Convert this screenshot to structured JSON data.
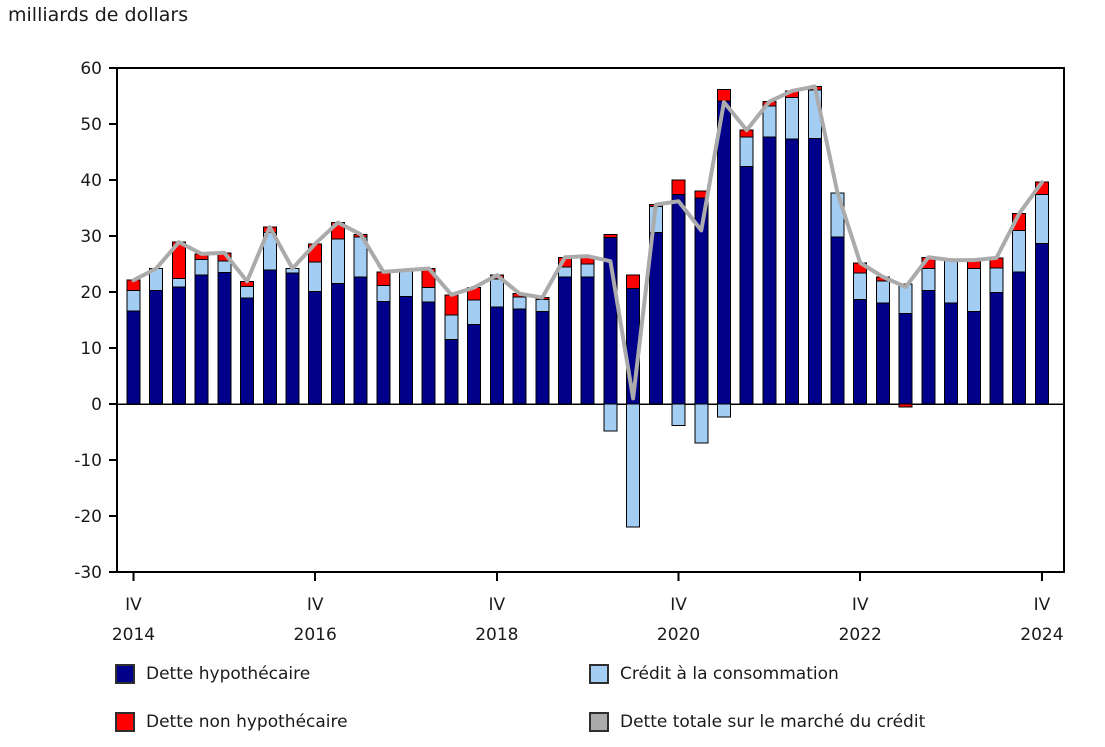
{
  "title": "milliards de dollars",
  "legend": {
    "items": [
      {
        "label": "Dette hypothécaire"
      },
      {
        "label": "Crédit à la consommation"
      },
      {
        "label": "Dette non hypothécaire"
      },
      {
        "label": "Dette totale sur le marché du crédit"
      }
    ]
  },
  "colors": {
    "mortgage": "#00008B",
    "consumer_credit": "#A3CDF3",
    "non_mortgage": "#FF0000",
    "total_line": "#ABABAB",
    "axis": "#000000"
  },
  "chart_data": {
    "type": "bar",
    "subtype": "stacked-bars-with-total-line",
    "title": "milliards de dollars",
    "ylabel": "milliards de dollars",
    "ylim": [
      -30,
      60
    ],
    "ytick_interval": 10,
    "yticks": [
      60,
      50,
      40,
      30,
      20,
      10,
      0,
      -10,
      -20,
      -30
    ],
    "grid": false,
    "legend_position": "bottom",
    "categories": [
      "IV 2014",
      "I 2015",
      "II 2015",
      "III 2015",
      "IV 2015",
      "I 2016",
      "II 2016",
      "III 2016",
      "IV 2016",
      "I 2017",
      "II 2017",
      "III 2017",
      "IV 2017",
      "I 2018",
      "II 2018",
      "III 2018",
      "IV 2018",
      "I 2019",
      "II 2019",
      "III 2019",
      "IV 2019",
      "I 2020",
      "II 2020",
      "III 2020",
      "IV 2020",
      "I 2021",
      "II 2021",
      "III 2021",
      "IV 2021",
      "I 2022",
      "II 2022",
      "III 2022",
      "IV 2022",
      "I 2023",
      "II 2023",
      "III 2023",
      "IV 2023",
      "I 2024",
      "II 2024",
      "III 2024",
      "IV 2024"
    ],
    "xtick_labels": [
      {
        "index": 0,
        "quarter": "IV",
        "year": "2014"
      },
      {
        "index": 8,
        "quarter": "IV",
        "year": "2016"
      },
      {
        "index": 16,
        "quarter": "IV",
        "year": "2018"
      },
      {
        "index": 24,
        "quarter": "IV",
        "year": "2020"
      },
      {
        "index": 32,
        "quarter": "IV",
        "year": "2022"
      },
      {
        "index": 40,
        "quarter": "IV",
        "year": "2024"
      }
    ],
    "series": [
      {
        "name": "Dette hypothécaire",
        "role": "mortgage",
        "type": "bar",
        "color": "#00008B",
        "values": [
          16.6,
          20.3,
          20.9,
          23.0,
          23.5,
          18.9,
          23.9,
          23.4,
          20.1,
          21.5,
          22.7,
          18.3,
          19.2,
          18.2,
          11.5,
          14.2,
          17.3,
          17.0,
          16.5,
          22.7,
          22.7,
          29.7,
          20.6,
          30.6,
          37.4,
          36.8,
          54.1,
          42.4,
          47.7,
          47.3,
          47.4,
          29.8,
          18.7,
          18.0,
          16.2,
          20.3,
          18.0,
          16.5,
          19.9,
          23.6,
          28.7
        ]
      },
      {
        "name": "Crédit à la consommation",
        "role": "consumer_credit",
        "type": "bar",
        "color": "#A3CDF3",
        "values": [
          3.7,
          3.9,
          1.5,
          2.8,
          2.0,
          2.1,
          6.7,
          0.8,
          5.3,
          8.0,
          7.1,
          2.9,
          4.7,
          2.6,
          4.4,
          4.4,
          5.0,
          2.1,
          2.2,
          1.8,
          2.3,
          -4.8,
          -22.0,
          4.7,
          -3.8,
          -7.0,
          -2.3,
          5.3,
          5.5,
          7.4,
          8.7,
          7.9,
          4.7,
          4.0,
          5.2,
          3.9,
          7.6,
          7.7,
          4.4,
          7.4,
          8.7
        ]
      },
      {
        "name": "Dette non hypothécaire",
        "role": "non_mortgage",
        "type": "bar",
        "color": "#FF0000",
        "values": [
          1.8,
          0.0,
          6.5,
          1.0,
          1.5,
          0.9,
          1.0,
          0.0,
          3.2,
          2.9,
          0.5,
          2.4,
          0.0,
          3.4,
          3.6,
          2.2,
          0.7,
          0.6,
          0.3,
          1.7,
          1.4,
          0.6,
          2.4,
          0.3,
          2.6,
          1.2,
          2.1,
          1.2,
          0.8,
          1.2,
          0.6,
          0.0,
          1.8,
          0.7,
          -0.5,
          2.0,
          0.1,
          1.5,
          1.8,
          3.0,
          2.2
        ]
      },
      {
        "name": "Dette totale sur le marché du crédit",
        "role": "total",
        "type": "line",
        "color": "#ABABAB",
        "values": [
          22.1,
          24.2,
          28.9,
          26.8,
          27.0,
          21.9,
          31.6,
          24.2,
          28.6,
          32.4,
          30.3,
          23.6,
          23.9,
          24.2,
          19.5,
          20.8,
          23.0,
          19.7,
          19.0,
          26.2,
          26.4,
          25.5,
          1.0,
          35.6,
          36.2,
          31.0,
          53.9,
          48.9,
          54.0,
          55.9,
          56.7,
          37.7,
          25.2,
          22.7,
          20.9,
          26.2,
          25.7,
          25.7,
          26.1,
          34.0,
          39.6
        ]
      }
    ]
  }
}
